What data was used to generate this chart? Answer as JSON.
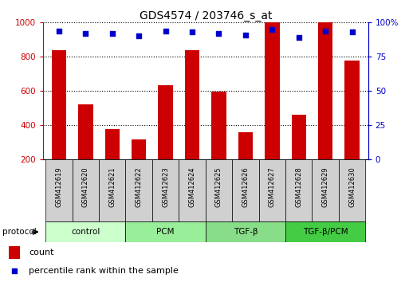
{
  "title": "GDS4574 / 203746_s_at",
  "samples": [
    "GSM412619",
    "GSM412620",
    "GSM412621",
    "GSM412622",
    "GSM412623",
    "GSM412624",
    "GSM412625",
    "GSM412626",
    "GSM412627",
    "GSM412628",
    "GSM412629",
    "GSM412630"
  ],
  "count_values": [
    840,
    520,
    375,
    315,
    635,
    840,
    595,
    360,
    1000,
    460,
    1000,
    780
  ],
  "percentile_values": [
    94,
    92,
    92,
    90,
    94,
    93,
    92,
    91,
    95,
    89,
    94,
    93
  ],
  "bar_color": "#cc0000",
  "dot_color": "#0000cc",
  "ylim_left": [
    200,
    1000
  ],
  "ylim_right": [
    0,
    100
  ],
  "yticks_left": [
    200,
    400,
    600,
    800,
    1000
  ],
  "yticks_right": [
    0,
    25,
    50,
    75,
    100
  ],
  "ylabel_left_color": "#cc0000",
  "ylabel_right_color": "#0000cc",
  "groups": [
    {
      "label": "control",
      "start": 0,
      "end": 3,
      "color": "#ccffcc"
    },
    {
      "label": "PCM",
      "start": 3,
      "end": 6,
      "color": "#99ee99"
    },
    {
      "label": "TGF-β",
      "start": 6,
      "end": 9,
      "color": "#88dd88"
    },
    {
      "label": "TGF-β/PCM",
      "start": 9,
      "end": 12,
      "color": "#44cc44"
    }
  ],
  "protocol_label": "protocol",
  "legend_count_label": "count",
  "legend_pct_label": "percentile rank within the sample"
}
